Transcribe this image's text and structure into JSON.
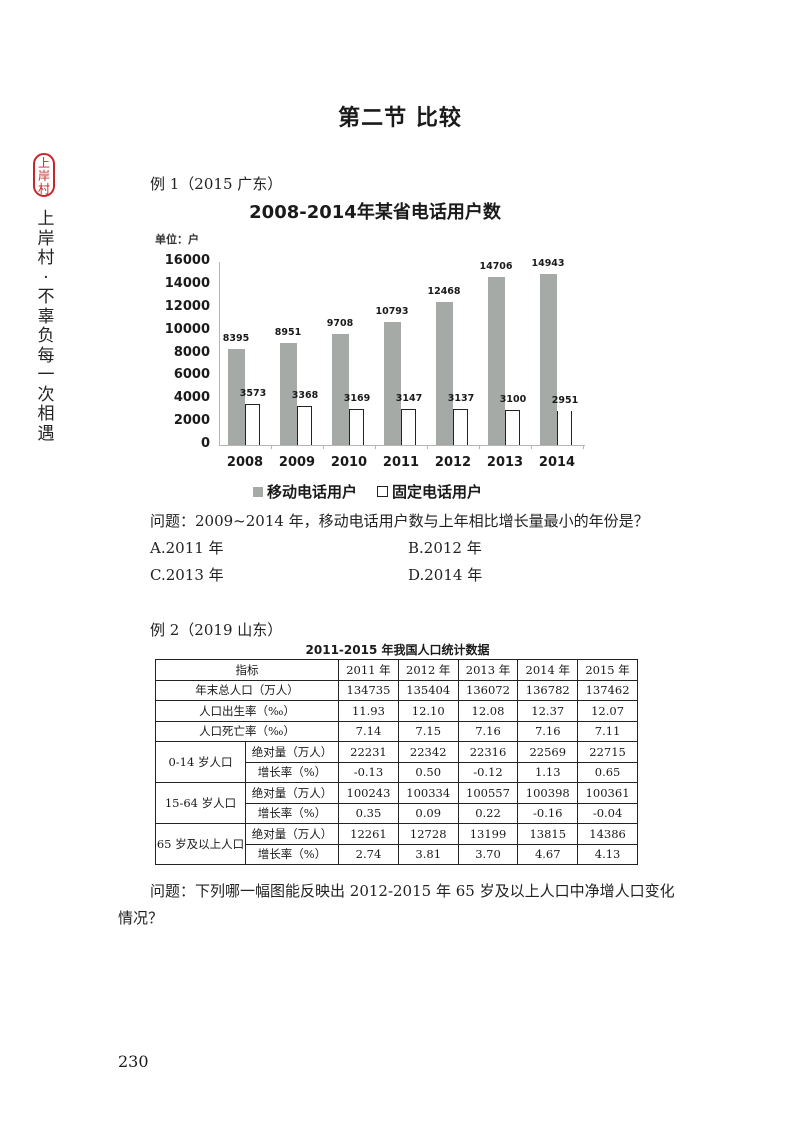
{
  "brand": {
    "seal_chars": [
      "上",
      "岸",
      "村"
    ],
    "side_text": [
      "上",
      "岸",
      "村",
      "·",
      "不",
      "辜",
      "负",
      "每",
      "一",
      "次",
      "相",
      "遇"
    ],
    "seal_color": "#c8262a"
  },
  "section_title": "第二节  比较",
  "example1": {
    "label": "例 1（2015 广东）",
    "question": "问题：2009~2014 年，移动电话用户数与上年相比增长量最小的年份是？",
    "options": [
      "A.2011 年",
      "B.2012 年",
      "C.2013 年",
      "D.2014 年"
    ]
  },
  "chart_data": {
    "type": "bar",
    "title": "2008-2014年某省电话用户数",
    "unit_label": "单位：户",
    "xlabel": "",
    "ylabel": "",
    "categories": [
      "2008",
      "2009",
      "2010",
      "2011",
      "2012",
      "2013",
      "2014"
    ],
    "series": [
      {
        "name": "移动电话用户",
        "color": "#a5aaa7",
        "values": [
          8395,
          8951,
          9708,
          10793,
          12468,
          14706,
          14943
        ]
      },
      {
        "name": "固定电话用户",
        "color": "#ffffff",
        "values": [
          3573,
          3368,
          3169,
          3147,
          3137,
          3100,
          2951
        ]
      }
    ],
    "yticks": [
      "0",
      "2000",
      "4000",
      "6000",
      "8000",
      "10000",
      "12000",
      "14000",
      "16000"
    ],
    "ylim": [
      0,
      16000
    ],
    "grid": false,
    "legend_position": "bottom"
  },
  "example2": {
    "label": "例 2（2019 山东）",
    "table_title": "2011-2015 年我国人口统计数据",
    "header": [
      "指标",
      "2011 年",
      "2012 年",
      "2013 年",
      "2014 年",
      "2015 年"
    ],
    "rows": [
      {
        "label": "年末总人口（万人）",
        "values": [
          "134735",
          "135404",
          "136072",
          "136782",
          "137462"
        ]
      },
      {
        "label": "人口出生率（‰）",
        "values": [
          "11.93",
          "12.10",
          "12.08",
          "12.37",
          "12.07"
        ]
      },
      {
        "label": "人口死亡率（‰）",
        "values": [
          "7.14",
          "7.15",
          "7.16",
          "7.16",
          "7.11"
        ]
      }
    ],
    "groups": [
      {
        "label": "0-14 岁人口",
        "abs_label": "绝对量（万人）",
        "abs": [
          "22231",
          "22342",
          "22316",
          "22569",
          "22715"
        ],
        "rate_label": "增长率（%）",
        "rate": [
          "-0.13",
          "0.50",
          "-0.12",
          "1.13",
          "0.65"
        ]
      },
      {
        "label": "15-64 岁人口",
        "abs_label": "绝对量（万人）",
        "abs": [
          "100243",
          "100334",
          "100557",
          "100398",
          "100361"
        ],
        "rate_label": "增长率（%）",
        "rate": [
          "0.35",
          "0.09",
          "0.22",
          "-0.16",
          "-0.04"
        ]
      },
      {
        "label": "65 岁及以上人口",
        "abs_label": "绝对量（万人）",
        "abs": [
          "12261",
          "12728",
          "13199",
          "13815",
          "14386"
        ],
        "rate_label": "增长率（%）",
        "rate": [
          "2.74",
          "3.81",
          "3.70",
          "4.67",
          "4.13"
        ]
      }
    ],
    "question_line1": "问题：下列哪一幅图能反映出 2012-2015 年 65 岁及以上人口中净增人口变化",
    "question_line2": "情况？"
  },
  "page_number": "230"
}
